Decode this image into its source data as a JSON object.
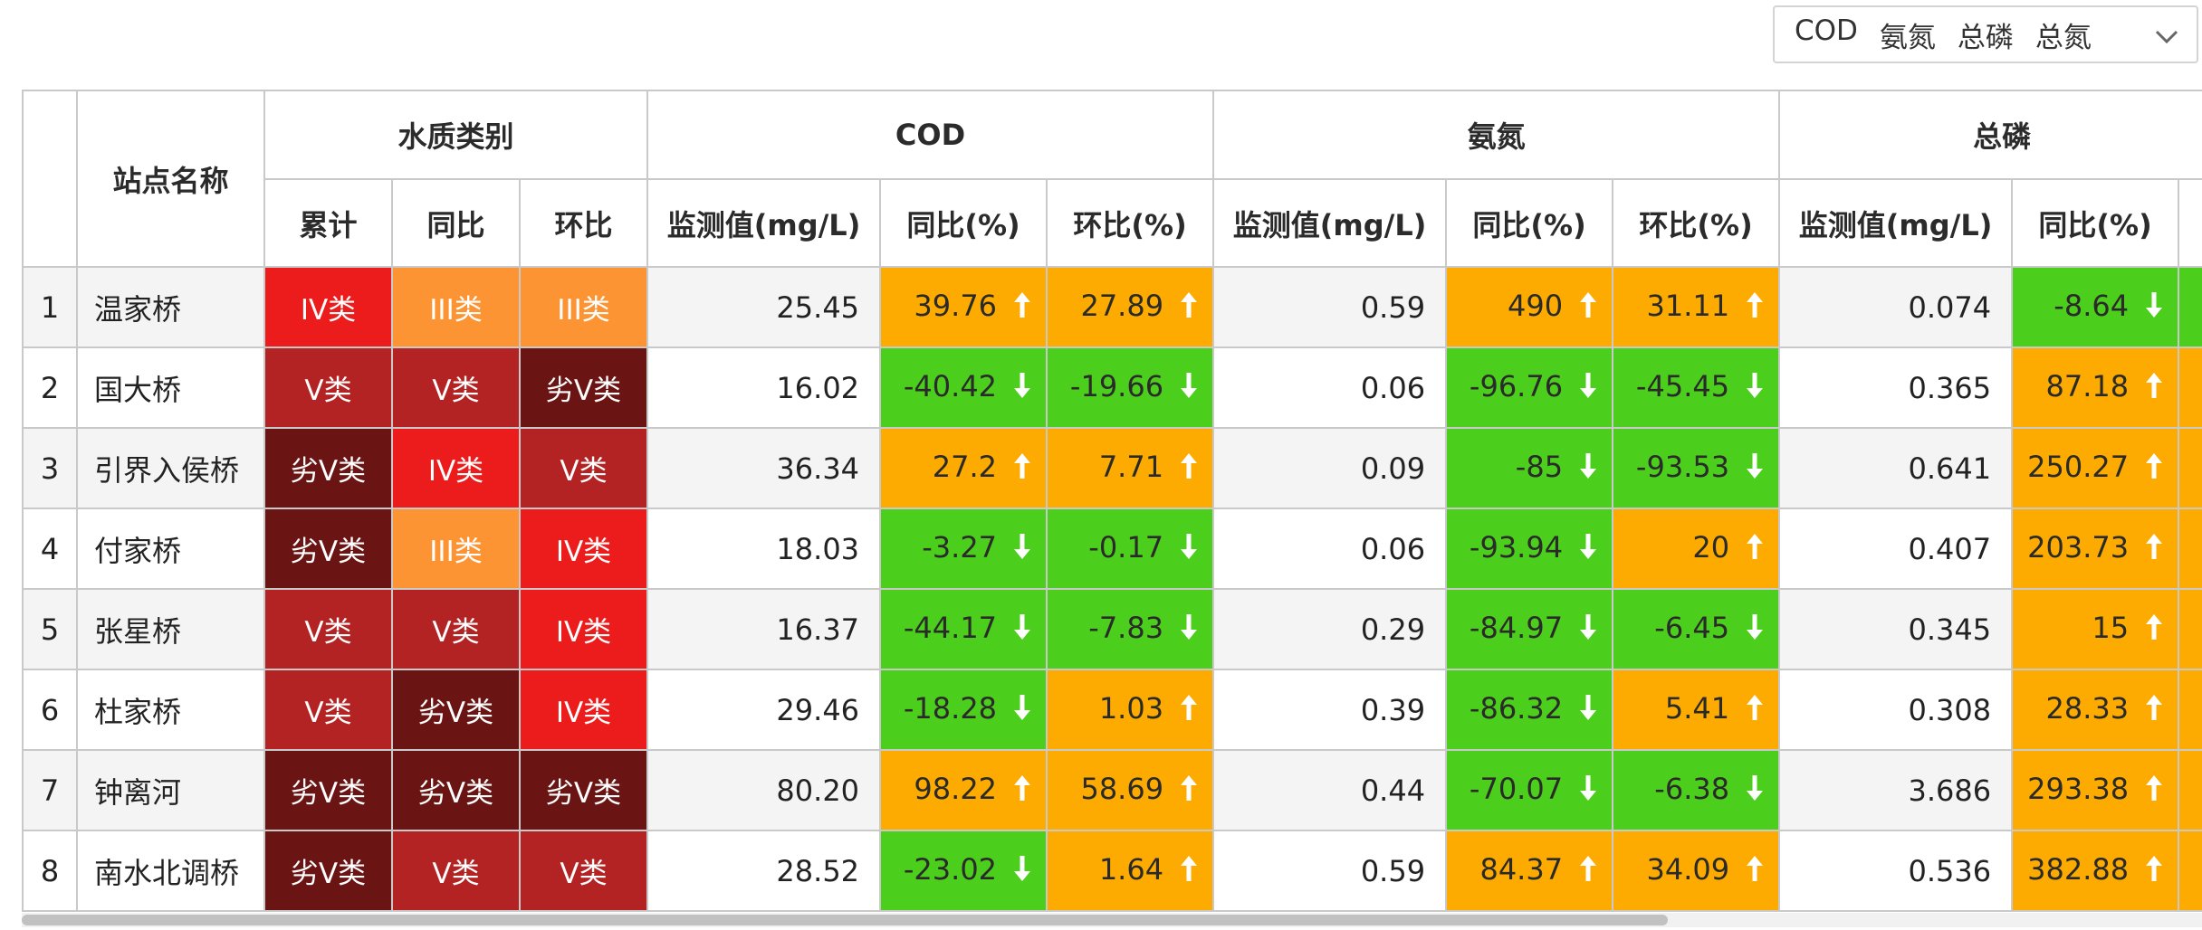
{
  "filter": {
    "tags": [
      "COD",
      "氨氮",
      "总磷",
      "总氮"
    ],
    "dropdown_icon": "chevron-down-icon"
  },
  "table": {
    "headers": {
      "station": "站点名称",
      "water_class": "水质类别",
      "cod": "COD",
      "ammonia": "氨氮",
      "phosphorus": "总磷",
      "cumulative": "累计",
      "yoy": "同比",
      "mom": "环比",
      "monitor_value": "监测值(mg/L)",
      "yoy_pct": "同比(%)",
      "mom_pct": "环比(%)"
    },
    "rows": [
      {
        "idx": "1",
        "name": "温家桥",
        "cls_total": "IV类",
        "cls_yoy": "III类",
        "cls_mom": "III类",
        "cod_val": "25.45",
        "cod_yoy": "39.76",
        "cod_mom": "27.89",
        "nh_val": "0.59",
        "nh_yoy": "490",
        "nh_mom": "31.11",
        "tp_val": "0.074",
        "tp_yoy": "-8.64"
      },
      {
        "idx": "2",
        "name": "国大桥",
        "cls_total": "V类",
        "cls_yoy": "V类",
        "cls_mom": "劣V类",
        "cod_val": "16.02",
        "cod_yoy": "-40.42",
        "cod_mom": "-19.66",
        "nh_val": "0.06",
        "nh_yoy": "-96.76",
        "nh_mom": "-45.45",
        "tp_val": "0.365",
        "tp_yoy": "87.18"
      },
      {
        "idx": "3",
        "name": "引界入侯桥",
        "cls_total": "劣V类",
        "cls_yoy": "IV类",
        "cls_mom": "V类",
        "cod_val": "36.34",
        "cod_yoy": "27.2",
        "cod_mom": "7.71",
        "nh_val": "0.09",
        "nh_yoy": "-85",
        "nh_mom": "-93.53",
        "tp_val": "0.641",
        "tp_yoy": "250.27"
      },
      {
        "idx": "4",
        "name": "付家桥",
        "cls_total": "劣V类",
        "cls_yoy": "III类",
        "cls_mom": "IV类",
        "cod_val": "18.03",
        "cod_yoy": "-3.27",
        "cod_mom": "-0.17",
        "nh_val": "0.06",
        "nh_yoy": "-93.94",
        "nh_mom": "20",
        "tp_val": "0.407",
        "tp_yoy": "203.73"
      },
      {
        "idx": "5",
        "name": "张星桥",
        "cls_total": "V类",
        "cls_yoy": "V类",
        "cls_mom": "IV类",
        "cod_val": "16.37",
        "cod_yoy": "-44.17",
        "cod_mom": "-7.83",
        "nh_val": "0.29",
        "nh_yoy": "-84.97",
        "nh_mom": "-6.45",
        "tp_val": "0.345",
        "tp_yoy": "15"
      },
      {
        "idx": "6",
        "name": "杜家桥",
        "cls_total": "V类",
        "cls_yoy": "劣V类",
        "cls_mom": "IV类",
        "cod_val": "29.46",
        "cod_yoy": "-18.28",
        "cod_mom": "1.03",
        "nh_val": "0.39",
        "nh_yoy": "-86.32",
        "nh_mom": "5.41",
        "tp_val": "0.308",
        "tp_yoy": "28.33"
      },
      {
        "idx": "7",
        "name": "钟离河",
        "cls_total": "劣V类",
        "cls_yoy": "劣V类",
        "cls_mom": "劣V类",
        "cod_val": "80.20",
        "cod_yoy": "98.22",
        "cod_mom": "58.69",
        "nh_val": "0.44",
        "nh_yoy": "-70.07",
        "nh_mom": "-6.38",
        "tp_val": "3.686",
        "tp_yoy": "293.38"
      },
      {
        "idx": "8",
        "name": "南水北调桥",
        "cls_total": "劣V类",
        "cls_yoy": "V类",
        "cls_mom": "V类",
        "cod_val": "28.52",
        "cod_yoy": "-23.02",
        "cod_mom": "1.64",
        "nh_val": "0.59",
        "nh_yoy": "84.37",
        "nh_mom": "34.09",
        "tp_val": "0.536",
        "tp_yoy": "382.88"
      }
    ]
  },
  "colors": {
    "class_IV": "#ec1c1c",
    "class_III": "#fd9433",
    "class_V": "#b32323",
    "class_worse_V": "#6b1414",
    "trend_up": "#fdab00",
    "trend_down": "#4ccf1c"
  }
}
